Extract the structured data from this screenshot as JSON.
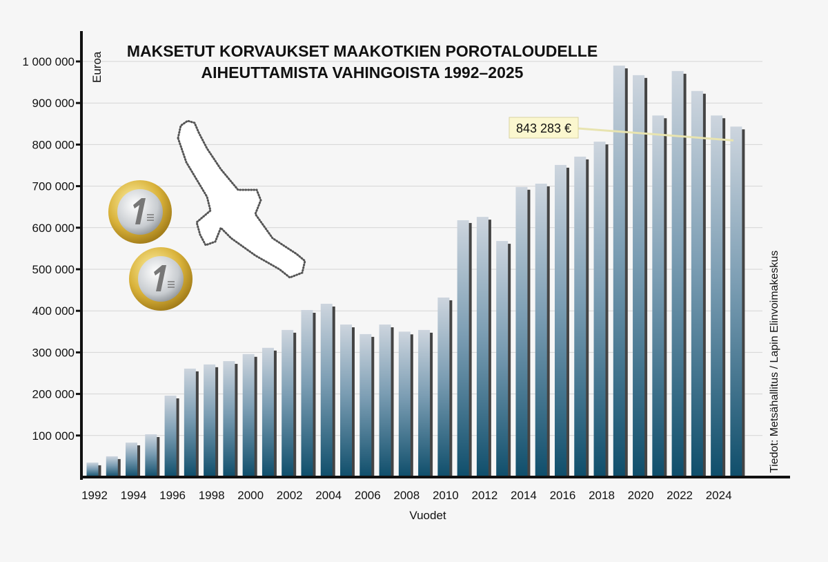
{
  "chart_data": {
    "type": "bar",
    "title": [
      "MAKSETUT KORVAUKSET MAAKOTKIEN POROTALOUDELLE",
      "AIHEUTTAMISTA VAHINGOISTA 1992–2025"
    ],
    "xlabel": "Vuodet",
    "ylabel": "Euroa",
    "source": "Tiedot: Metsähallitus / Lapin Elinvoimakeskus",
    "ylim": [
      0,
      1050000
    ],
    "yticks": [
      100000,
      200000,
      300000,
      400000,
      500000,
      600000,
      700000,
      800000,
      900000,
      1000000
    ],
    "ytick_labels": [
      "100 000",
      "200 000",
      "300 000",
      "400 000",
      "500 000",
      "600 000",
      "700 000",
      "800 000",
      "900 000",
      "1 000 000"
    ],
    "xtick_labels": [
      "1992",
      "1994",
      "1996",
      "1998",
      "2000",
      "2002",
      "2004",
      "2006",
      "2008",
      "2010",
      "2012",
      "2014",
      "2016",
      "2018",
      "2020",
      "2022",
      "2024"
    ],
    "grid": true,
    "categories": [
      1992,
      1993,
      1994,
      1995,
      1996,
      1997,
      1998,
      1999,
      2000,
      2001,
      2002,
      2003,
      2004,
      2005,
      2006,
      2007,
      2008,
      2009,
      2010,
      2011,
      2012,
      2013,
      2014,
      2015,
      2016,
      2017,
      2018,
      2019,
      2020,
      2021,
      2022,
      2023,
      2024,
      2025
    ],
    "values": [
      35000,
      50000,
      83000,
      103000,
      196000,
      261000,
      271000,
      279000,
      296000,
      311000,
      354000,
      402000,
      417000,
      367000,
      344000,
      367000,
      350000,
      354000,
      432000,
      618000,
      626000,
      568000,
      698000,
      706000,
      751000,
      771000,
      807000,
      990000,
      967000,
      870000,
      977000,
      929000,
      870000,
      843283
    ],
    "annotation": {
      "year": 2025,
      "label": "843 283 €"
    },
    "colors": {
      "bar_top": "#cdd5de",
      "bar_bottom": "#0f4e6b",
      "shadow": "#444444",
      "annotation_bg": "#fbf7cf"
    }
  }
}
